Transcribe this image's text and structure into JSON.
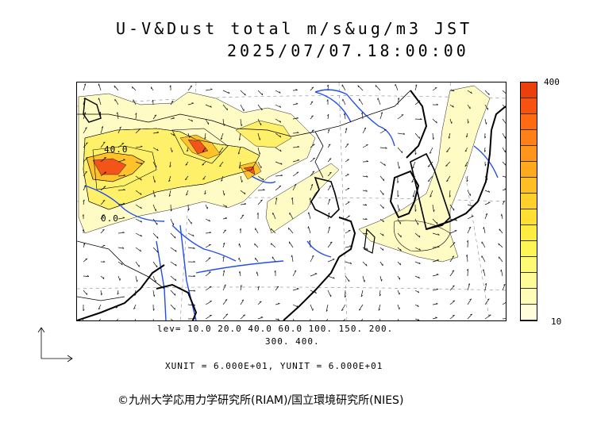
{
  "header": {
    "title_line1": "U-V&Dust total m/s&ug/m3 JST",
    "title_line2": "2025/07/07.18:00:00"
  },
  "legend": {
    "levels_line1": "lev= 10.0 20.0 40.0 60.0 100. 150. 200.",
    "levels_line2": "300. 400.",
    "units": "XUNIT = 6.000E+01, YUNIT = 6.000E+01"
  },
  "colorbar": {
    "max_label": "400",
    "min_label": "10",
    "colors": [
      "#fffddc",
      "#fffdb8",
      "#fffc98",
      "#fffa74",
      "#fff555",
      "#ffec40",
      "#ffdf32",
      "#ffd02a",
      "#ffbf24",
      "#ffaa1e",
      "#ff951a",
      "#ff8016",
      "#ff6a12",
      "#f65210",
      "#ec400c"
    ]
  },
  "map": {
    "contour_labels": [
      "40.0",
      "0.0"
    ],
    "colors": {
      "low": "#fffbc4",
      "mid": "#fff06a",
      "high": "#ffc22a",
      "peak": "#f2541a",
      "river": "#1f4ef0"
    }
  },
  "footer": {
    "copyright": "©九州大学応用力学研究所(RIAM)/国立環境研究所(NIES)"
  }
}
